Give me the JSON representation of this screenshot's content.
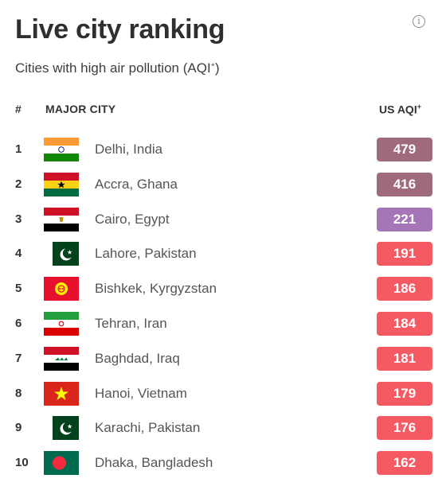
{
  "header": {
    "title": "Live city ranking",
    "subtitle": "Cities with high air pollution (AQI",
    "subtitle_sup": "+",
    "subtitle_close": ")",
    "info_glyph": "i"
  },
  "columns": {
    "rank": "#",
    "city": "MAJOR CITY",
    "aqi": "US AQI",
    "aqi_sup": "+"
  },
  "colors": {
    "hazardous": "#a06a7d",
    "very_unhealthy": "#a675b8",
    "unhealthy": "#f55a62"
  },
  "rows": [
    {
      "rank": "1",
      "city": "Delhi, India",
      "aqi": "479",
      "level": "hazardous",
      "flag": "india-flag-icon"
    },
    {
      "rank": "2",
      "city": "Accra, Ghana",
      "aqi": "416",
      "level": "hazardous",
      "flag": "ghana-flag-icon"
    },
    {
      "rank": "3",
      "city": "Cairo, Egypt",
      "aqi": "221",
      "level": "very_unhealthy",
      "flag": "egypt-flag-icon"
    },
    {
      "rank": "4",
      "city": "Lahore, Pakistan",
      "aqi": "191",
      "level": "unhealthy",
      "flag": "pakistan-flag-icon"
    },
    {
      "rank": "5",
      "city": "Bishkek, Kyrgyzstan",
      "aqi": "186",
      "level": "unhealthy",
      "flag": "kyrgyzstan-flag-icon"
    },
    {
      "rank": "6",
      "city": "Tehran, Iran",
      "aqi": "184",
      "level": "unhealthy",
      "flag": "iran-flag-icon"
    },
    {
      "rank": "7",
      "city": "Baghdad, Iraq",
      "aqi": "181",
      "level": "unhealthy",
      "flag": "iraq-flag-icon"
    },
    {
      "rank": "8",
      "city": "Hanoi, Vietnam",
      "aqi": "179",
      "level": "unhealthy",
      "flag": "vietnam-flag-icon"
    },
    {
      "rank": "9",
      "city": "Karachi, Pakistan",
      "aqi": "176",
      "level": "unhealthy",
      "flag": "pakistan-flag-icon"
    },
    {
      "rank": "10",
      "city": "Dhaka, Bangladesh",
      "aqi": "162",
      "level": "unhealthy",
      "flag": "bangladesh-flag-icon"
    }
  ]
}
